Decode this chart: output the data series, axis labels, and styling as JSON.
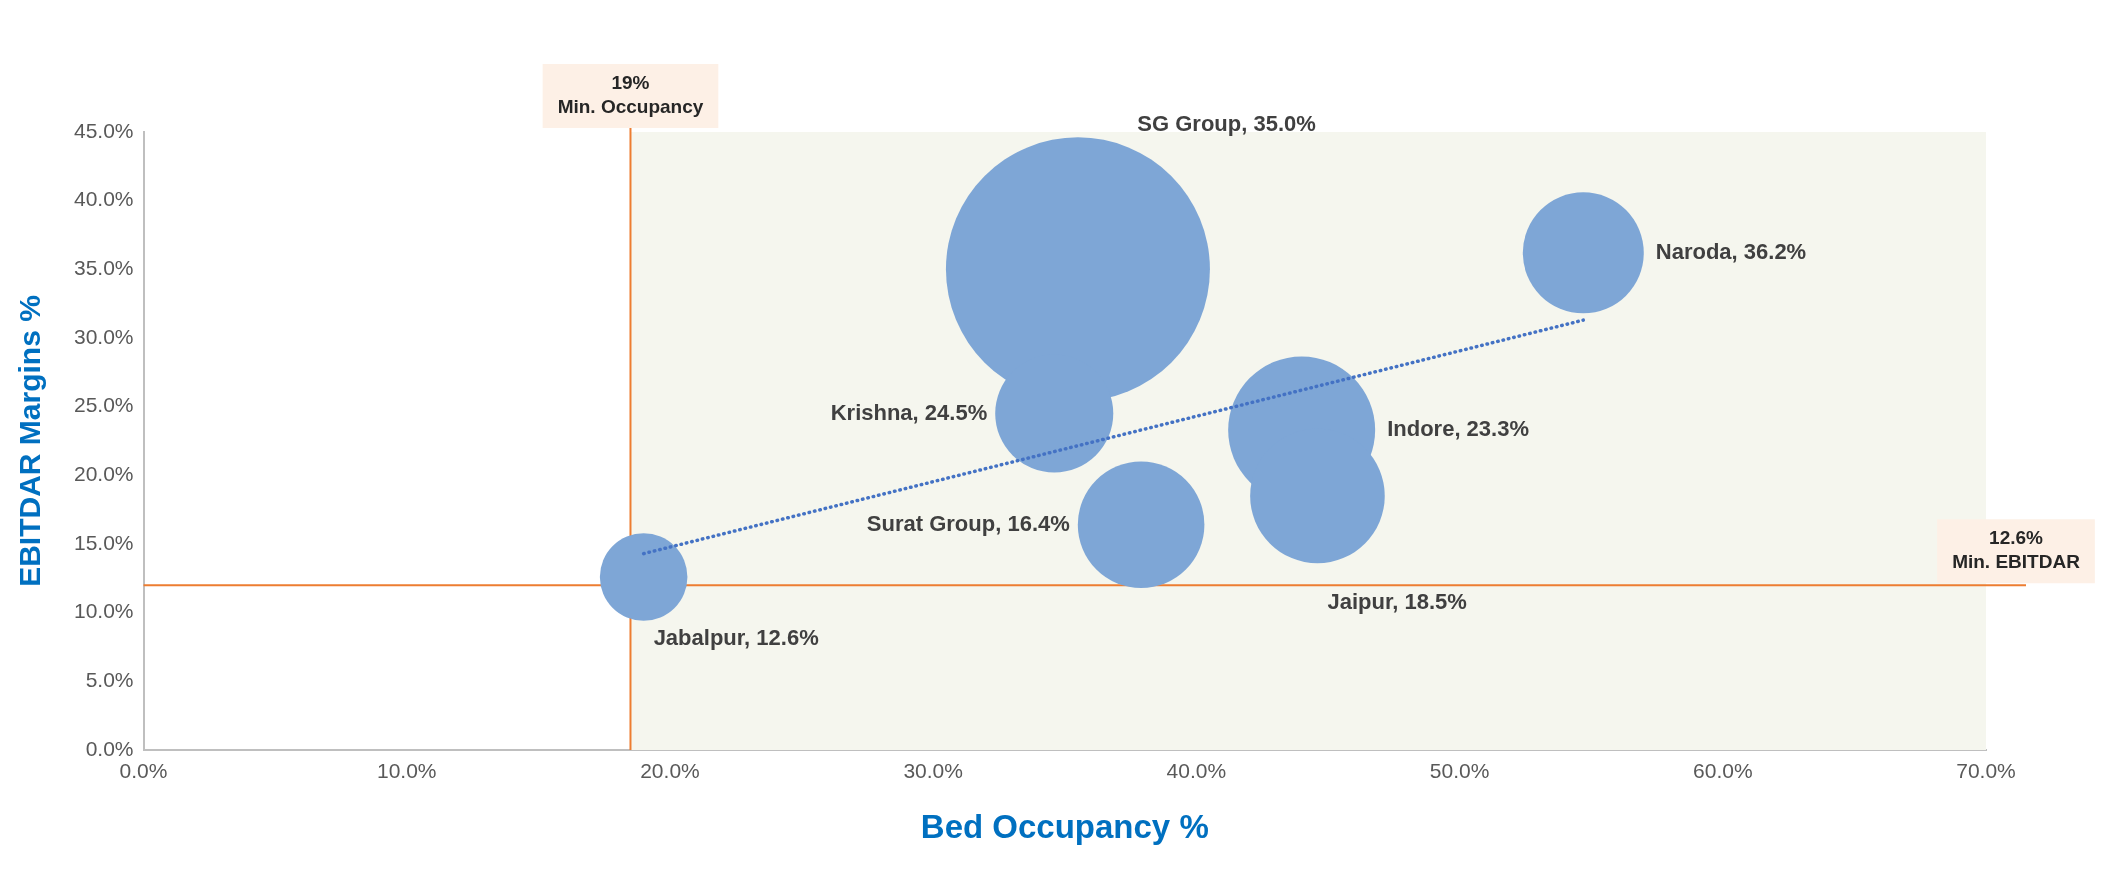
{
  "chart_data": {
    "type": "bubble",
    "xlabel": "Bed Occupancy %",
    "ylabel": "EBITDAR Margins %",
    "xlim": [
      0,
      70
    ],
    "xticks": [
      {
        "value": 0,
        "label": "0.0%"
      },
      {
        "value": 10,
        "label": "10.0%"
      },
      {
        "value": 20,
        "label": "20.0%"
      },
      {
        "value": 30,
        "label": "30.0%"
      },
      {
        "value": 40,
        "label": "40.0%"
      },
      {
        "value": 50,
        "label": "50.0%"
      },
      {
        "value": 60,
        "label": "60.0%"
      },
      {
        "value": 70,
        "label": "70.0%"
      }
    ],
    "ylim": [
      0,
      45
    ],
    "yticks": [
      {
        "value": 0,
        "label": "0.0%"
      },
      {
        "value": 5,
        "label": "5.0%"
      },
      {
        "value": 10,
        "label": "10.0%"
      },
      {
        "value": 15,
        "label": "15.0%"
      },
      {
        "value": 20,
        "label": "20.0%"
      },
      {
        "value": 25,
        "label": "25.0%"
      },
      {
        "value": 30,
        "label": "30.0%"
      },
      {
        "value": 35,
        "label": "35.0%"
      },
      {
        "value": 40,
        "label": "40.0%"
      },
      {
        "value": 45,
        "label": "45.0%"
      }
    ],
    "grid": false,
    "legend": false,
    "series": [
      {
        "color": "#7ea6d6",
        "x": [
          19.0,
          35.5,
          54.7,
          34.6,
          44.0,
          37.9,
          44.6
        ],
        "values": [
          12.6,
          35.0,
          36.2,
          24.5,
          23.3,
          16.4,
          18.5
        ],
        "sizes": [
          0.11,
          1,
          0.21,
          0.2,
          0.31,
          0.23,
          0.26
        ],
        "value_labels": [
          "Jabalpur, 12.6%",
          "SG Group, 35.0%",
          "Naroda, 36.2%",
          "Krishna, 24.5%",
          "Indore, 23.3%",
          "Surat Group, 16.4%",
          "Jaipur, 18.5%"
        ]
      },
      {
        "type": "line",
        "color": "#4472c4",
        "x": [
          19.0,
          54.7
        ],
        "values": [
          14.3,
          31.3
        ],
        "line_style": "dotted",
        "marker": "none"
      }
    ],
    "ref_lines": [
      {
        "axis": "x",
        "value": 18.5,
        "label": "19%\nMin. Occupancy",
        "color": "#ed7d31"
      },
      {
        "axis": "y",
        "value": 12.0,
        "label": "12.6%\nMin. EBITDAR",
        "color": "#ed7d31"
      }
    ],
    "bands": [
      {
        "axis": "x",
        "from": 18.5,
        "to": 70,
        "color": "#f5f6ee"
      }
    ]
  }
}
